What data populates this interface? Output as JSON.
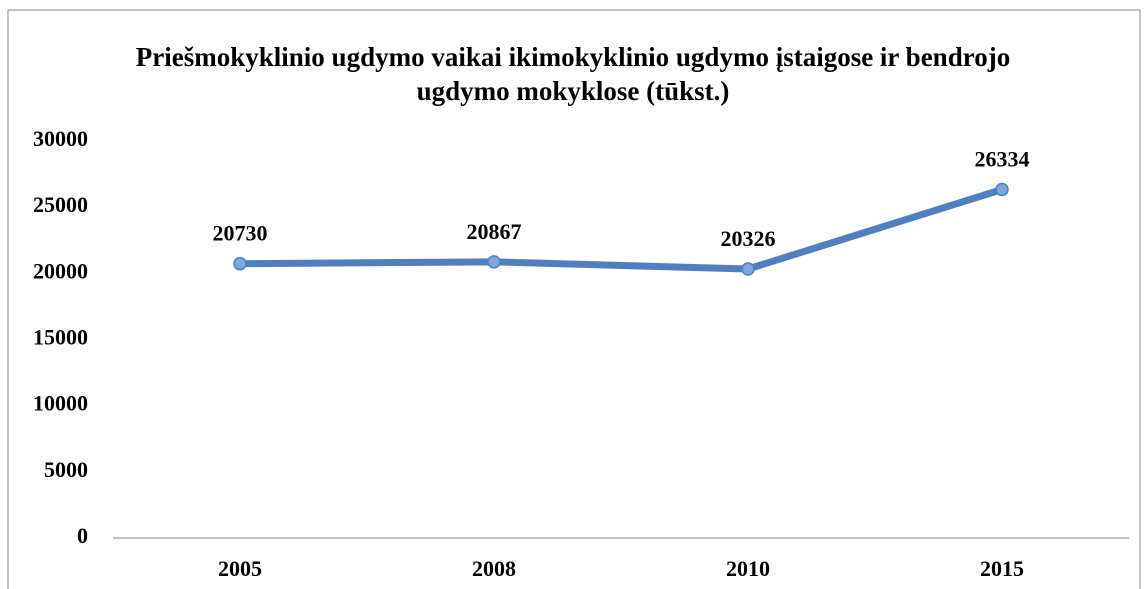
{
  "chart_data": {
    "type": "line",
    "title": "Priešmokyklinio ugdymo vaikai ikimokyklinio ugdymo įstaigose ir bendrojo ugdymo mokyklose (tūkst.)",
    "categories": [
      "2005",
      "2008",
      "2010",
      "2015"
    ],
    "values": [
      20730,
      20867,
      20326,
      26334
    ],
    "color": "#4f7fc0",
    "ylim": [
      0,
      30000
    ],
    "yticks": [
      0,
      5000,
      10000,
      15000,
      20000,
      25000,
      30000
    ],
    "grid": false
  }
}
